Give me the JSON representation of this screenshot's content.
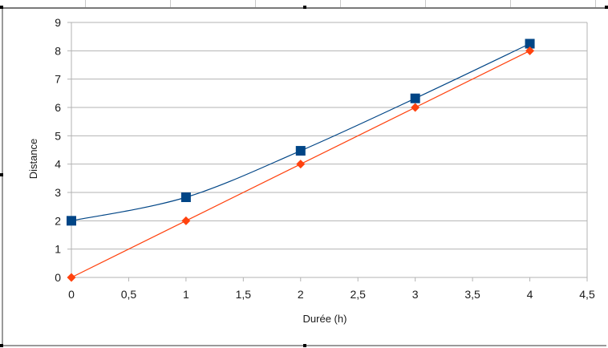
{
  "chart_data": {
    "type": "scatter",
    "title": "",
    "xlabel": "Durée (h)",
    "ylabel": "Distance",
    "xlim": [
      0,
      4.5
    ],
    "ylim": [
      0,
      9
    ],
    "x_ticks": [
      "0",
      "0,5",
      "1",
      "1,5",
      "2",
      "2,5",
      "3",
      "3,5",
      "4",
      "4,5"
    ],
    "y_ticks": [
      "0",
      "1",
      "2",
      "3",
      "4",
      "5",
      "6",
      "7",
      "8",
      "9"
    ],
    "grid": "horizontal",
    "legend": "none",
    "series": [
      {
        "marker": "square",
        "line": "smooth",
        "color": "#004586",
        "x": [
          0,
          1,
          2,
          3,
          4
        ],
        "y": [
          2,
          2.83,
          4.47,
          6.32,
          8.25
        ]
      },
      {
        "marker": "diamond",
        "line": "straight",
        "color": "#ff420e",
        "x": [
          0,
          1,
          2,
          3,
          4
        ],
        "y": [
          0,
          2,
          4,
          6,
          8
        ]
      }
    ]
  }
}
